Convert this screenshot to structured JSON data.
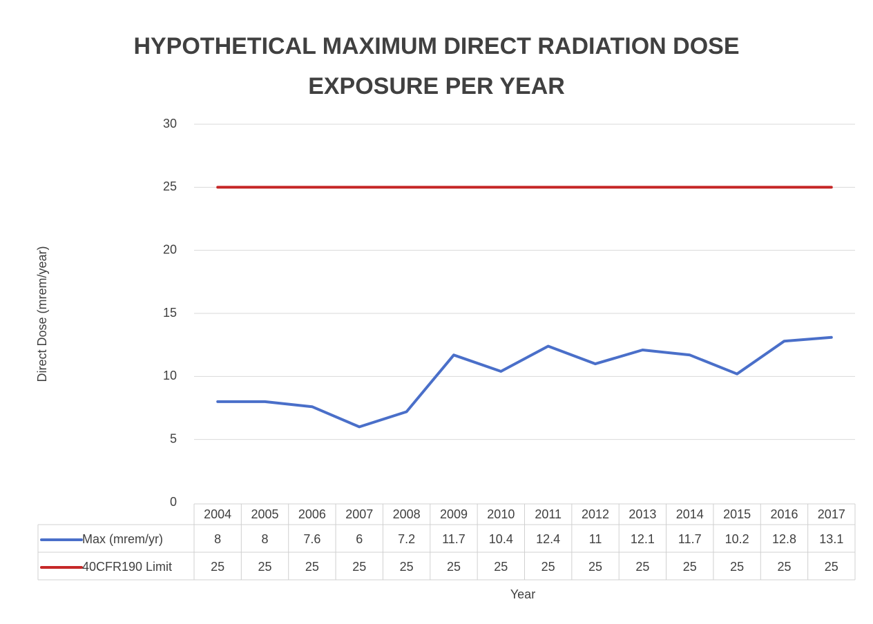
{
  "chart_data": {
    "type": "line",
    "title": "HYPOTHETICAL MAXIMUM DIRECT RADIATION DOSE EXPOSURE PER YEAR",
    "y_label": "Direct Dose (mrem/year)",
    "x_label": "Year",
    "categories": [
      "2004",
      "2005",
      "2006",
      "2007",
      "2008",
      "2009",
      "2010",
      "2011",
      "2012",
      "2013",
      "2014",
      "2015",
      "2016",
      "2017"
    ],
    "series": [
      {
        "name": "Max (mrem/yr)",
        "color": "#4a6fc9",
        "values": [
          8,
          8,
          7.6,
          6,
          7.2,
          11.7,
          10.4,
          12.4,
          11,
          12.1,
          11.7,
          10.2,
          12.8,
          13.1
        ]
      },
      {
        "name": "40CFR190 Limit",
        "color": "#c62828",
        "values": [
          25,
          25,
          25,
          25,
          25,
          25,
          25,
          25,
          25,
          25,
          25,
          25,
          25,
          25
        ]
      }
    ],
    "ylim": [
      0,
      30
    ],
    "yticks": [
      0,
      5,
      10,
      15,
      20,
      25,
      30
    ],
    "grid": true
  }
}
